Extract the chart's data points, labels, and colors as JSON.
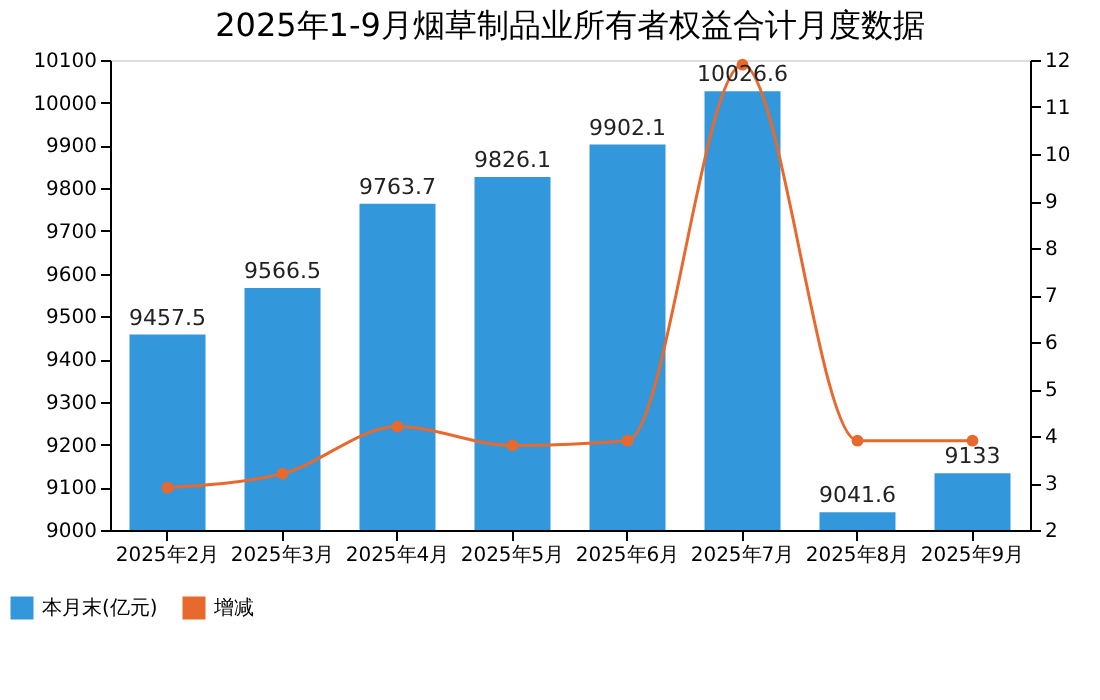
{
  "chart_data": {
    "type": "bar",
    "title": "2025年1-9月烟草制品业所有者权益合计月度数据",
    "categories": [
      "2025年2月",
      "2025年3月",
      "2025年4月",
      "2025年5月",
      "2025年6月",
      "2025年7月",
      "2025年8月",
      "2025年9月"
    ],
    "series": [
      {
        "name": "本月末(亿元)",
        "color": "#3398db",
        "values": [
          9457.5,
          9566.5,
          9763.7,
          9826.1,
          9902.1,
          10026.6,
          9041.6,
          9133
        ],
        "data_labels": true
      },
      {
        "name": "增减",
        "color": "#e8692d",
        "type": "line",
        "axis": "y2",
        "marker": "circle",
        "values": [
          2.9,
          3.2,
          4.2,
          3.8,
          3.9,
          11.9,
          3.9,
          3.9
        ]
      }
    ],
    "ylim": [
      9000,
      10100
    ],
    "yticks": [
      9000,
      9100,
      9200,
      9300,
      9400,
      9500,
      9600,
      9700,
      9800,
      9900,
      10000,
      10100
    ],
    "y2lim": [
      2,
      12
    ],
    "y2ticks": [
      2,
      3,
      4,
      5,
      6,
      7,
      8,
      9,
      10,
      11,
      12
    ],
    "legend": "bottom left",
    "grid": false
  }
}
